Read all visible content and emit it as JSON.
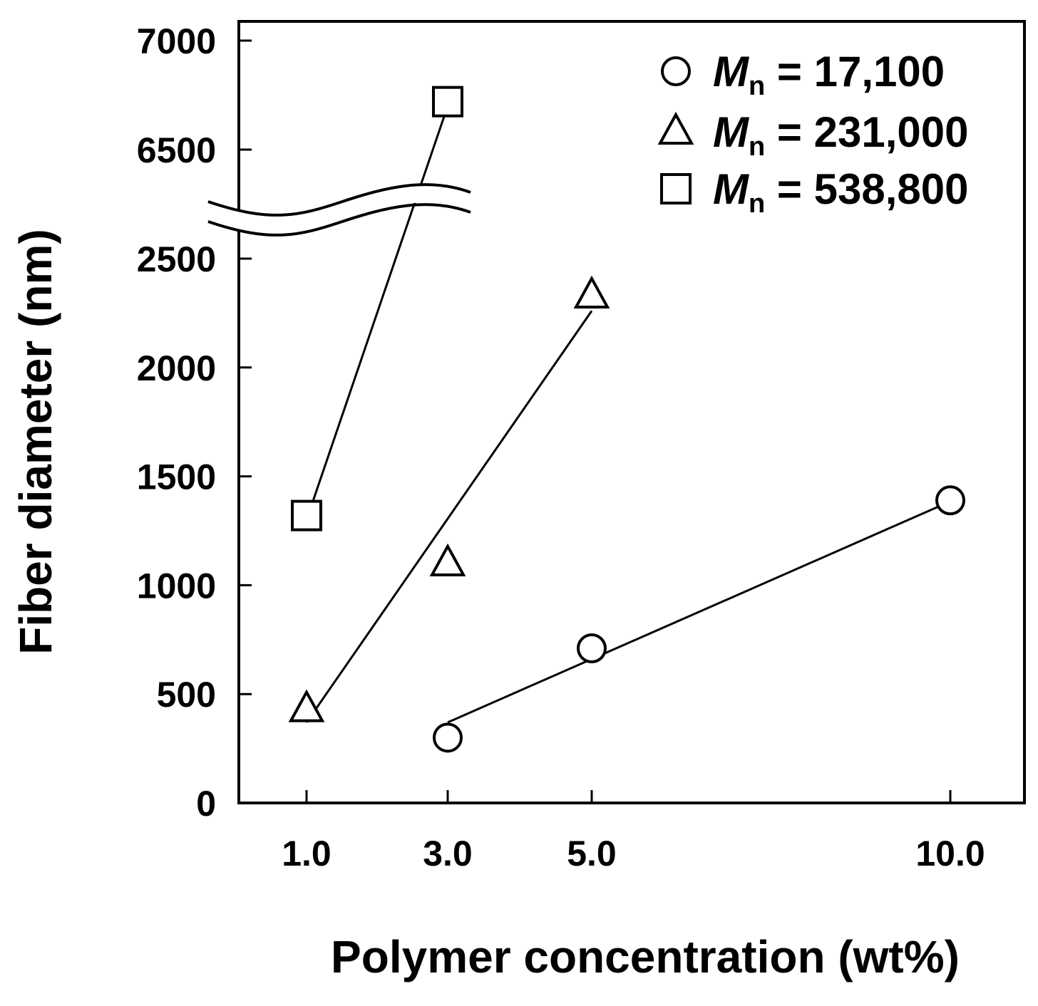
{
  "chart_data": {
    "type": "scatter",
    "title": "",
    "xlabel": "Polymer concentration (wt%)",
    "ylabel": "Fiber diameter (nm)",
    "x_ticks": [
      "1.0",
      "3.0",
      "5.0",
      "10.0"
    ],
    "y_ticks_lower": [
      "0",
      "500",
      "1000",
      "1500",
      "2000",
      "2500"
    ],
    "y_ticks_upper": [
      "6500",
      "7000"
    ],
    "ylim_lower": [
      0,
      2800
    ],
    "ylim_upper": [
      6400,
      7100
    ],
    "axis_break": true,
    "grid": false,
    "legend_position": "top-right",
    "series": [
      {
        "name": "Mn = 17,100",
        "label_main": "M",
        "label_sub": "n",
        "label_rest": " = 17,100",
        "marker": "circle",
        "x": [
          3.0,
          5.0,
          10.0
        ],
        "y": [
          300,
          710,
          1390
        ],
        "fit": [
          [
            3.0,
            370
          ],
          [
            10.0,
            1385
          ]
        ]
      },
      {
        "name": "Mn = 231,000",
        "label_main": "M",
        "label_sub": "n",
        "label_rest": " = 231,000",
        "marker": "triangle",
        "x": [
          1.0,
          3.0,
          5.0
        ],
        "y": [
          430,
          1100,
          2330
        ],
        "fit": [
          [
            1.0,
            370
          ],
          [
            5.0,
            2260
          ]
        ]
      },
      {
        "name": "Mn = 538,800",
        "label_main": "M",
        "label_sub": "n",
        "label_rest": " = 538,800",
        "marker": "square",
        "x": [
          1.0,
          3.0
        ],
        "y": [
          1320,
          6720
        ],
        "fit": [
          [
            1.0,
            1300
          ],
          [
            3.0,
            6700
          ]
        ]
      }
    ]
  }
}
